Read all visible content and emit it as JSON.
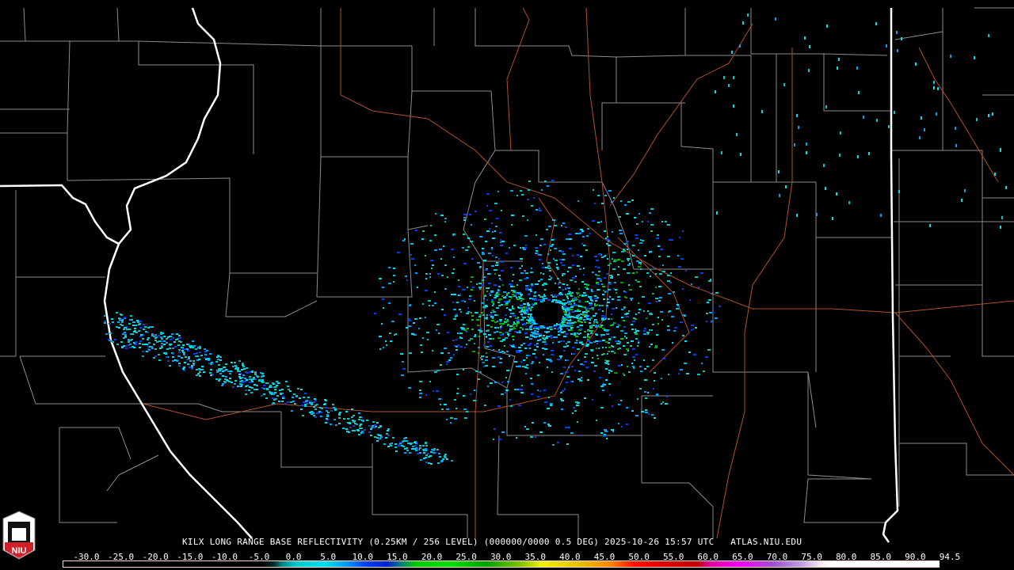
{
  "product_title": "KILX LONG RANGE BASE REFLECTIVITY (0.25KM / 256 LEVEL) (000000/0000 0.5 DEG) 2025-10-26 15:57 UTC   ATLAS.NIU.EDU",
  "logo_text": "NIU",
  "colorbar": {
    "labels": [
      "-30.0",
      "-25.0",
      "-20.0",
      "-15.0",
      "-10.0",
      "-5.0",
      "0.0",
      "5.0",
      "10.0",
      "15.0",
      "20.0",
      "25.0",
      "30.0",
      "35.0",
      "40.0",
      "45.0",
      "50.0",
      "55.0",
      "60.0",
      "65.0",
      "70.0",
      "75.0",
      "80.0",
      "85.0",
      "90.0",
      "94.5"
    ],
    "min": -30,
    "max": 94.5,
    "stops": [
      {
        "v": -30,
        "c": "#000000"
      },
      {
        "v": -2,
        "c": "#000000"
      },
      {
        "v": 0,
        "c": "#0a2a2a"
      },
      {
        "v": 1,
        "c": "#008080"
      },
      {
        "v": 3,
        "c": "#00c8c8"
      },
      {
        "v": 7,
        "c": "#00e0f0"
      },
      {
        "v": 10,
        "c": "#00a0f0"
      },
      {
        "v": 13,
        "c": "#0040f0"
      },
      {
        "v": 16,
        "c": "#0020d0"
      },
      {
        "v": 18,
        "c": "#008080"
      },
      {
        "v": 20,
        "c": "#00c800"
      },
      {
        "v": 25,
        "c": "#00e000"
      },
      {
        "v": 30,
        "c": "#00a000"
      },
      {
        "v": 35,
        "c": "#80c000"
      },
      {
        "v": 38,
        "c": "#f0f000"
      },
      {
        "v": 44,
        "c": "#e8b800"
      },
      {
        "v": 48,
        "c": "#ff8000"
      },
      {
        "v": 51,
        "c": "#ff1000"
      },
      {
        "v": 55,
        "c": "#e00000"
      },
      {
        "v": 60,
        "c": "#c00000"
      },
      {
        "v": 62,
        "c": "#e000a0"
      },
      {
        "v": 66,
        "c": "#f000f0"
      },
      {
        "v": 71,
        "c": "#a050d0"
      },
      {
        "v": 75,
        "c": "#c0a0e0"
      },
      {
        "v": 78,
        "c": "#f8f0f8"
      },
      {
        "v": 80,
        "c": "#ffffff"
      },
      {
        "v": 94.5,
        "c": "#ffffff"
      }
    ]
  },
  "colors": {
    "background": "#000000",
    "county_lines": "#8c8c8c",
    "state_lines": "#ffffff",
    "highways": "#b0502a",
    "logo_red": "#d0202a"
  }
}
